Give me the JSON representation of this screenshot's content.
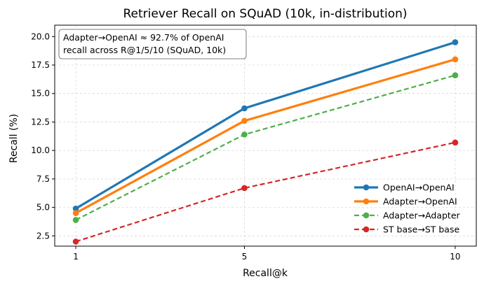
{
  "chart_data": {
    "type": "line",
    "title": "Retriever Recall on SQuAD (10k, in-distribution)",
    "xlabel": "Recall@k",
    "ylabel": "Recall (%)",
    "x": [
      1,
      5,
      10
    ],
    "x_tick_labels": [
      "1",
      "5",
      "10"
    ],
    "ylim": [
      1.6,
      21.0
    ],
    "y_ticks": [
      2.5,
      5.0,
      7.5,
      10.0,
      12.5,
      15.0,
      17.5,
      20.0
    ],
    "y_tick_labels": [
      "2.5",
      "5.0",
      "7.5",
      "10.0",
      "12.5",
      "15.0",
      "17.5",
      "20.0"
    ],
    "grid": true,
    "legend_position": "lower-right",
    "annotation": [
      "Adapter→OpenAI ≈ 92.7% of OpenAI",
      "recall across R@1/5/10 (SQuAD, 10k)"
    ],
    "series": [
      {
        "name": "OpenAI→OpenAI",
        "values": [
          4.9,
          13.7,
          19.5
        ],
        "color": "#1f77b4",
        "dashed": false
      },
      {
        "name": "Adapter→OpenAI",
        "values": [
          4.5,
          12.6,
          18.0
        ],
        "color": "#ff7f0e",
        "dashed": false
      },
      {
        "name": "Adapter→Adapter",
        "values": [
          3.9,
          11.4,
          16.6
        ],
        "color": "#4daf4a",
        "dashed": true
      },
      {
        "name": "ST base→ST base",
        "values": [
          2.0,
          6.7,
          10.7
        ],
        "color": "#d62728",
        "dashed": true
      }
    ]
  }
}
